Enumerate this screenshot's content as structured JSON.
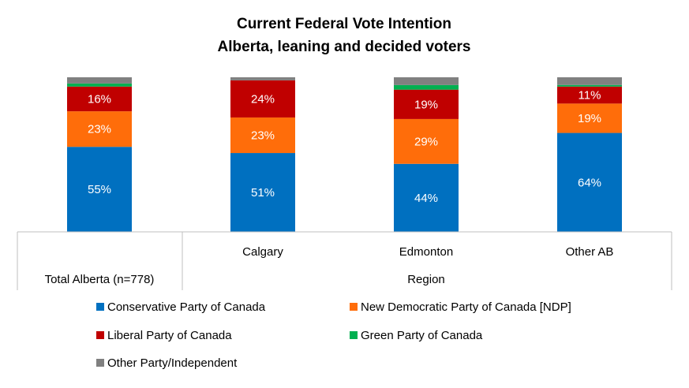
{
  "chart_data": {
    "type": "bar",
    "stacked": true,
    "title": "Current Federal Vote Intention",
    "subtitle": "Alberta, leaning and decided voters",
    "categories": [
      "Total Alberta (n=778)",
      "Calgary",
      "Edmonton",
      "Other AB"
    ],
    "group_label": "Region",
    "ylim": [
      0,
      100
    ],
    "grid": false,
    "legend_position": "bottom",
    "series": [
      {
        "name": "Conservative Party of Canada",
        "color": "#0070C0",
        "values": [
          55,
          51,
          44,
          64
        ],
        "labels": [
          "55%",
          "51%",
          "44%",
          "64%"
        ]
      },
      {
        "name": "New Democratic Party of Canada [NDP]",
        "color": "#FF6D0A",
        "values": [
          23,
          23,
          29,
          19
        ],
        "labels": [
          "23%",
          "23%",
          "29%",
          "19%"
        ]
      },
      {
        "name": "Liberal Party of Canada",
        "color": "#C00000",
        "values": [
          16,
          24,
          19,
          11
        ],
        "labels": [
          "16%",
          "24%",
          "19%",
          "11%"
        ]
      },
      {
        "name": "Green Party of Canada",
        "color": "#00B050",
        "values": [
          2,
          0,
          3,
          1
        ],
        "labels": [
          "",
          "",
          "",
          ""
        ]
      },
      {
        "name": "Other Party/Independent",
        "color": "#808080",
        "values": [
          4,
          2,
          5,
          5
        ],
        "labels": [
          "",
          "",
          "",
          ""
        ]
      }
    ]
  }
}
